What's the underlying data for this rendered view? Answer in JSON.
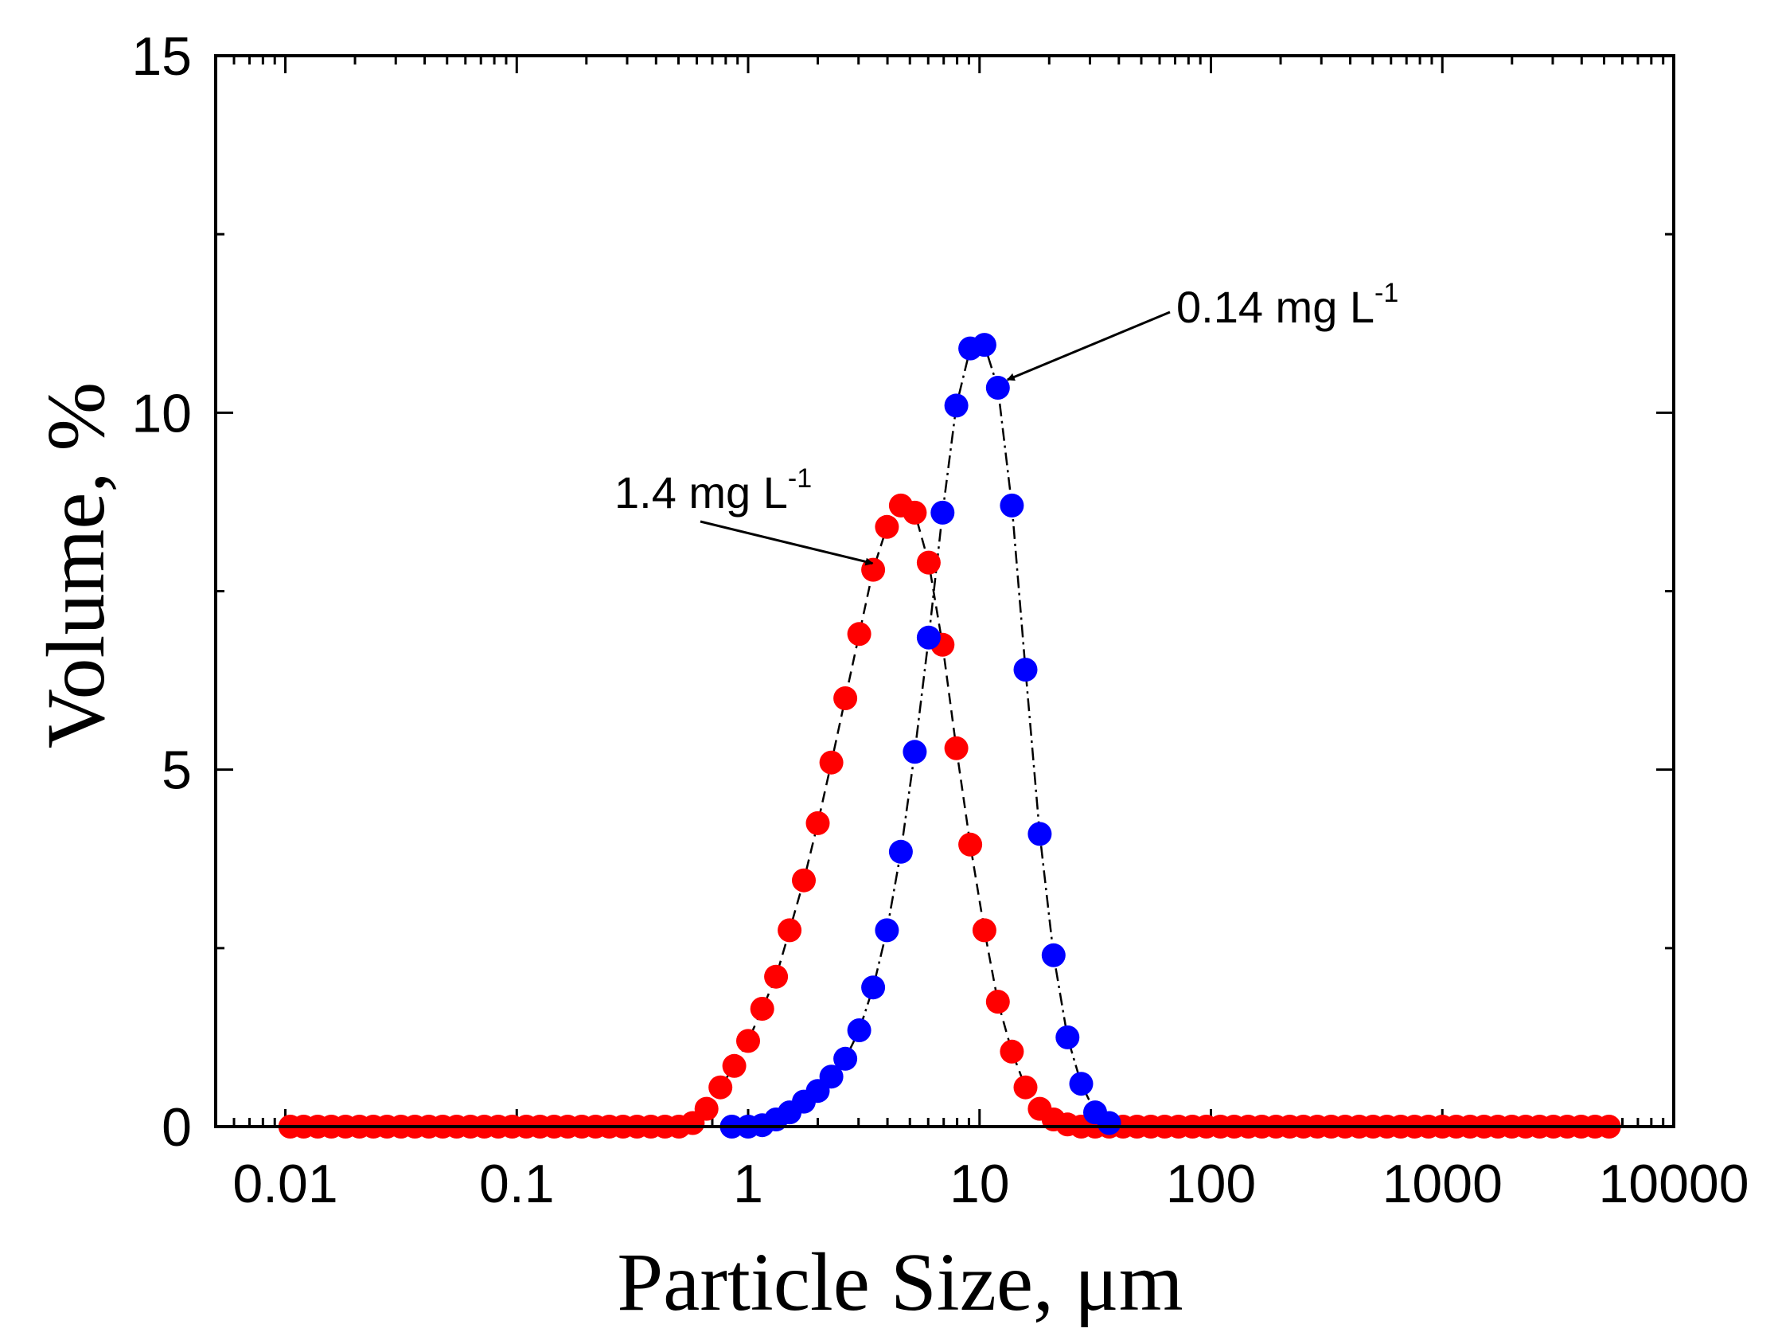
{
  "chart_data": {
    "type": "scatter",
    "title": "",
    "xlabel": "Particle Size, μm",
    "ylabel": "Volume, %",
    "xscale": "log",
    "xlim": [
      0.005,
      10000
    ],
    "ylim": [
      0,
      15
    ],
    "xticks": [
      0.01,
      0.1,
      1,
      10,
      100,
      1000,
      10000
    ],
    "xtick_labels": [
      "0.01",
      "0.1",
      "1",
      "10",
      "100",
      "1000",
      "10000"
    ],
    "yticks": [
      0,
      5,
      10,
      15
    ],
    "ytick_labels": [
      "0",
      "5",
      "10",
      "15"
    ],
    "grid": false,
    "legend": "none",
    "series": [
      {
        "name": "1.4 mg L-1",
        "color": "#ff0000",
        "line": "dashed",
        "x": [
          0.0105,
          0.012,
          0.0138,
          0.0158,
          0.0182,
          0.0209,
          0.024,
          0.0275,
          0.0316,
          0.0363,
          0.0417,
          0.0479,
          0.055,
          0.0631,
          0.0724,
          0.0832,
          0.0955,
          0.11,
          0.126,
          0.145,
          0.166,
          0.191,
          0.219,
          0.251,
          0.288,
          0.331,
          0.38,
          0.437,
          0.502,
          0.576,
          0.661,
          0.759,
          0.871,
          1.0,
          1.15,
          1.32,
          1.51,
          1.74,
          2.0,
          2.29,
          2.63,
          3.02,
          3.47,
          3.98,
          4.57,
          5.25,
          6.03,
          6.92,
          7.94,
          9.12,
          10.5,
          12.0,
          13.8,
          15.8,
          18.2,
          20.9,
          24.0,
          27.5,
          31.6,
          36.3,
          41.7,
          47.9,
          55.0,
          63.1,
          72.4,
          83.2,
          95.5,
          110,
          126,
          145,
          166,
          191,
          219,
          251,
          288,
          331,
          380,
          437,
          502,
          576,
          661,
          759,
          871,
          1000,
          1148,
          1318,
          1514,
          1738,
          1995,
          2291,
          2630,
          3020,
          3467,
          3981,
          4571,
          5248
        ],
        "y": [
          0,
          0,
          0,
          0,
          0,
          0,
          0,
          0,
          0,
          0,
          0,
          0,
          0,
          0,
          0,
          0,
          0,
          0,
          0,
          0,
          0,
          0,
          0,
          0,
          0,
          0,
          0,
          0,
          0,
          0.05,
          0.25,
          0.55,
          0.85,
          1.2,
          1.65,
          2.1,
          2.75,
          3.45,
          4.25,
          5.1,
          6.0,
          6.9,
          7.8,
          8.4,
          8.7,
          8.6,
          7.9,
          6.75,
          5.3,
          3.95,
          2.75,
          1.75,
          1.05,
          0.55,
          0.25,
          0.1,
          0.03,
          0,
          0,
          0,
          0,
          0,
          0,
          0,
          0,
          0,
          0,
          0,
          0,
          0,
          0,
          0,
          0,
          0,
          0,
          0,
          0,
          0,
          0,
          0,
          0,
          0,
          0,
          0,
          0,
          0,
          0,
          0,
          0,
          0,
          0,
          0,
          0,
          0,
          0,
          0
        ]
      },
      {
        "name": "0.14 mg L-1",
        "color": "#0000ff",
        "line": "dash-dot",
        "x": [
          0.85,
          1.0,
          1.15,
          1.32,
          1.51,
          1.74,
          2.0,
          2.29,
          2.63,
          3.02,
          3.47,
          3.98,
          4.57,
          5.25,
          6.03,
          6.92,
          7.94,
          9.12,
          10.5,
          12.0,
          13.8,
          15.8,
          18.2,
          20.9,
          24.0,
          27.5,
          31.6,
          36.3
        ],
        "y": [
          0,
          0,
          0.02,
          0.1,
          0.2,
          0.35,
          0.5,
          0.7,
          0.95,
          1.35,
          1.95,
          2.75,
          3.85,
          5.25,
          6.85,
          8.6,
          10.1,
          10.9,
          10.95,
          10.35,
          8.7,
          6.4,
          4.1,
          2.4,
          1.25,
          0.6,
          0.2,
          0.05
        ]
      }
    ],
    "annotations": [
      {
        "text": "1.4 mg L",
        "sup": "-1",
        "target_series": "1.4 mg L-1",
        "points_to_x": 3.98,
        "points_to_y": 7.8
      },
      {
        "text": "0.14 mg L",
        "sup": "-1",
        "target_series": "0.14 mg L-1",
        "points_to_x": 12.0,
        "points_to_y": 10.35
      }
    ]
  }
}
